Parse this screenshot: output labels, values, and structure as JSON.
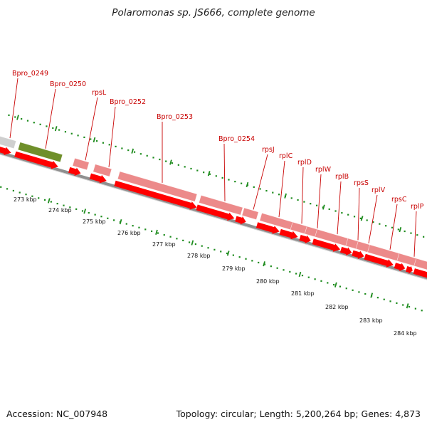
{
  "title": "Polaromonas sp. JS666, complete genome",
  "accession": "Accession: NC_007948",
  "topology": "Topology: circular; Length: 5,200,264 bp; Genes: 4,873",
  "colors": {
    "gene_red": "#ff0000",
    "gene_pink": "#ec8a8a",
    "gene_olive": "#6f8f2a",
    "gene_gray": "#cfcfcf",
    "backbone": "#8f8f8f",
    "dots": "#1e8c1e",
    "label": "#c80000"
  },
  "scale_labels": [
    "273 kbp",
    "274 kbp",
    "275 kbp",
    "276 kbp",
    "277 kbp",
    "278 kbp",
    "279 kbp",
    "280 kbp",
    "281 kbp",
    "282 kbp",
    "283 kbp",
    "284 kbp"
  ],
  "gene_labels": [
    "Bpro_0249",
    "Bpro_0250",
    "rpsL",
    "Bpro_0252",
    "Bpro_0253",
    "Bpro_0254",
    "rpsJ",
    "rplC",
    "rplD",
    "rplW",
    "rplB",
    "rpsS",
    "rplV",
    "rpsC",
    "rplP"
  ]
}
